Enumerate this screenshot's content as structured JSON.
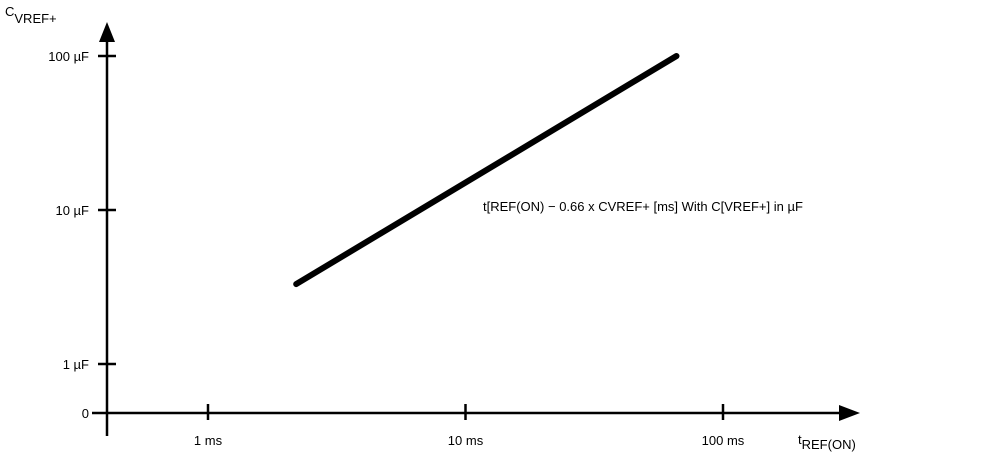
{
  "chart_data": {
    "type": "line",
    "title": "",
    "xlabel": {
      "main": "t",
      "sub": "REF(ON)"
    },
    "ylabel": {
      "main": "C",
      "sub": "VREF+"
    },
    "x_scale": "log",
    "y_scale": "log",
    "xlim": [
      0.46,
      125
    ],
    "x_ticks": [
      {
        "value": 1,
        "label": "1 ms"
      },
      {
        "value": 10,
        "label": "10 ms"
      },
      {
        "value": 100,
        "label": "100 ms"
      }
    ],
    "y_ticks": [
      {
        "value": 0,
        "label": "0"
      },
      {
        "value": 1,
        "label": "1 µF"
      },
      {
        "value": 10,
        "label": "10 µF"
      },
      {
        "value": 100,
        "label": "100 µF"
      }
    ],
    "grid": false,
    "series": [
      {
        "name": "",
        "x": [
          2.2,
          66
        ],
        "y": [
          3.3,
          100
        ]
      }
    ],
    "annotation": "t[REF(ON) − 0.66 x CVREF+ [ms]  With C[VREF+] in µF",
    "line_color": "#000000"
  }
}
